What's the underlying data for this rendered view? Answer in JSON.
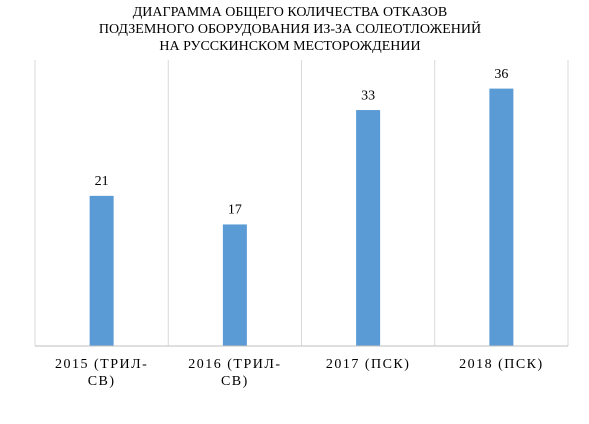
{
  "chart_data": {
    "type": "bar",
    "title": [
      "ДИАГРАММА  ОБЩЕГО КОЛИЧЕСТВА  ОТКАЗОВ",
      "ПОДЗЕМНОГО ОБОРУДОВАНИЯ ИЗ-ЗА СОЛЕОТЛОЖЕНИЙ",
      "НА РУССКИНСКОМ МЕСТОРОЖДЕНИИ"
    ],
    "categories": [
      "2015 (ТРИЛ-СВ)",
      "2016 (ТРИЛ-СВ)",
      "2017 (ПСК)",
      "2018 (ПСК)"
    ],
    "values": [
      21,
      17,
      33,
      36
    ],
    "color": "#5b9bd5",
    "ylim": [
      0,
      40
    ],
    "grid": true
  }
}
